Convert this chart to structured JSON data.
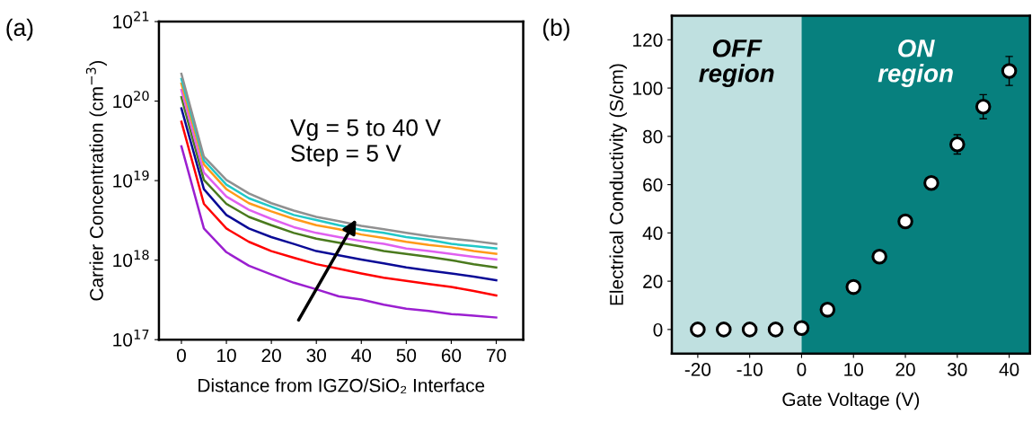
{
  "chart_data": [
    {
      "type": "line",
      "xlabel": "Distance from IGZO/SiO₂ Interface",
      "ylabel": "Carrier Concentration (cm$^{−3}$)",
      "x": [
        0,
        5,
        10,
        15,
        20,
        25,
        30,
        35,
        40,
        45,
        50,
        55,
        60,
        65,
        70
      ],
      "log": "y",
      "xlim": [
        -5,
        76
      ],
      "xticks": [
        0,
        10,
        20,
        30,
        40,
        50,
        60,
        70
      ],
      "ylim": [
        1e+17,
        1e+21
      ],
      "yticks": [
        {
          "value": 1e+17,
          "label": "10$^{17}$"
        },
        {
          "value": 1e+18,
          "label": "10$^{18}$"
        },
        {
          "value": 1e+19,
          "label": "10$^{19}$"
        },
        {
          "value": 1e+20,
          "label": "10$^{20}$"
        },
        {
          "value": 1e+21,
          "label": "10$^{21}$"
        }
      ],
      "grid": false,
      "marker": "none",
      "line_style": "solid",
      "annotations": [
        "(a)",
        "Vg = 5 to 40 V\nStep = 5 V"
      ],
      "series": [
        {
          "color": "#9b1fd0",
          "values": [
            2.7e+19,
            2.5e+18,
            1.26e+18,
            8.5e+17,
            6.6e+17,
            5.2e+17,
            4.3e+17,
            3.5e+17,
            3.2e+17,
            2.75e+17,
            2.45e+17,
            2.3e+17,
            2.1e+17,
            2e+17,
            1.9e+17
          ]
        },
        {
          "color": "#ff0000",
          "values": [
            5.5e+19,
            5.1e+18,
            2.5e+18,
            1.7e+18,
            1.3e+18,
            1.07e+18,
            8.9e+17,
            7.8e+17,
            6.8e+17,
            6e+17,
            5.5e+17,
            5e+17,
            4.6e+17,
            4.1e+17,
            3.6e+17
          ]
        },
        {
          "color": "#0a0a96",
          "values": [
            8.1e+19,
            7.8e+18,
            3.7e+18,
            2.5e+18,
            1.95e+18,
            1.6e+18,
            1.3e+18,
            1.15e+18,
            1.02e+18,
            9.1e+17,
            8.1e+17,
            7.4e+17,
            6.8e+17,
            6.2e+17,
            5.6e+17
          ]
        },
        {
          "color": "#4a7a1e",
          "values": [
            1.12e+20,
            1.02e+19,
            5.1e+18,
            3.5e+18,
            2.75e+18,
            2.2e+18,
            1.86e+18,
            1.66e+18,
            1.48e+18,
            1.3e+18,
            1.2e+18,
            1.1e+18,
            1e+18,
            8.9e+17,
            8.1e+17
          ]
        },
        {
          "color": "#e060f0",
          "values": [
            1.38e+20,
            1.26e+19,
            6.3e+18,
            4.3e+18,
            3.3e+18,
            2.6e+18,
            2.2e+18,
            1.95e+18,
            1.74e+18,
            1.6e+18,
            1.4e+18,
            1.3e+18,
            1.2e+18,
            1.1e+18,
            1.02e+18
          ]
        },
        {
          "color": "#ff9a1a",
          "values": [
            1.66e+20,
            1.6e+19,
            7.8e+18,
            5.2e+18,
            4.1e+18,
            3.3e+18,
            2.75e+18,
            2.45e+18,
            2.1e+18,
            1.9e+18,
            1.7e+18,
            1.55e+18,
            1.45e+18,
            1.3e+18,
            1.2e+18
          ]
        },
        {
          "color": "#20c8c8",
          "values": [
            1.9e+20,
            1.8e+19,
            8.9e+18,
            6e+18,
            4.7e+18,
            3.7e+18,
            3.2e+18,
            2.75e+18,
            2.4e+18,
            2.2e+18,
            1.95e+18,
            1.8e+18,
            1.6e+18,
            1.5e+18,
            1.4e+18
          ]
        },
        {
          "color": "#909090",
          "values": [
            2.2e+20,
            2e+19,
            1.02e+19,
            6.9e+18,
            5.2e+18,
            4.2e+18,
            3.5e+18,
            3.1e+18,
            2.7e+18,
            2.45e+18,
            2.2e+18,
            2e+18,
            1.86e+18,
            1.74e+18,
            1.6e+18
          ]
        }
      ]
    },
    {
      "type": "scatter",
      "xlabel": "Gate Voltage (V)",
      "ylabel": "Electrical Conductivity (S/cm)",
      "x": [
        -20,
        -15,
        -10,
        -5,
        0,
        5,
        10,
        15,
        20,
        25,
        30,
        35,
        40
      ],
      "xlim": [
        -25,
        44
      ],
      "xticks": [
        -20,
        -10,
        0,
        10,
        20,
        30,
        40
      ],
      "ylim": [
        -10,
        130
      ],
      "yticks": [
        0,
        20,
        40,
        60,
        80,
        100,
        120
      ],
      "grid": false,
      "marker": "circle",
      "annotations": [
        "(b)"
      ],
      "bands": [
        {
          "axis": "x",
          "from": -25,
          "to": 0,
          "label": "OFF\nregion",
          "color": "#bfe0e0"
        },
        {
          "axis": "x",
          "from": 0,
          "to": 44,
          "label": "ON\nregion",
          "color": "#07807e"
        }
      ],
      "series": [
        {
          "color": "#ffffff",
          "values": [
            0,
            0,
            0,
            0,
            0.6,
            8.2,
            17.6,
            30.2,
            44.8,
            60.7,
            76.7,
            92.3,
            107.1
          ],
          "errors": [
            0.5,
            0.5,
            0.5,
            0.5,
            0.5,
            null,
            null,
            null,
            null,
            2,
            4,
            5,
            6
          ]
        }
      ]
    }
  ]
}
